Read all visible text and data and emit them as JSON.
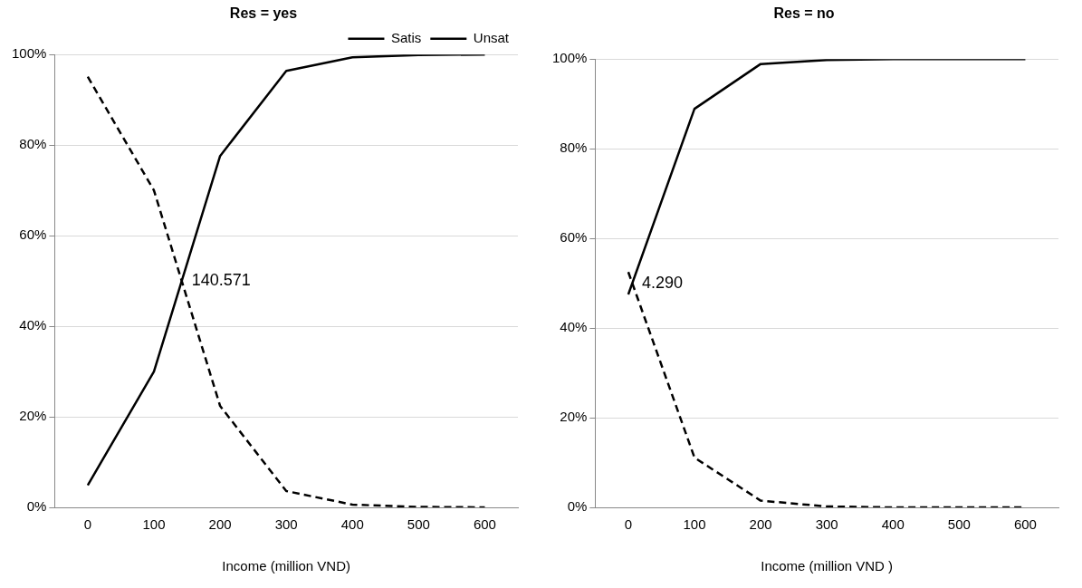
{
  "chart_data": [
    {
      "type": "line",
      "title": "Res = yes",
      "xlabel": "Income (million VND)",
      "x": [
        0,
        100,
        200,
        300,
        400,
        500,
        600
      ],
      "xlim": [
        -50,
        650
      ],
      "xticks": [
        0,
        100,
        200,
        300,
        400,
        500,
        600
      ],
      "ylim": [
        0,
        100
      ],
      "yticks": [
        {
          "value": 0,
          "label": "0%"
        },
        {
          "value": 20,
          "label": "20%"
        },
        {
          "value": 40,
          "label": "40%"
        },
        {
          "value": 60,
          "label": "60%"
        },
        {
          "value": 80,
          "label": "80%"
        },
        {
          "value": 100,
          "label": "100%"
        }
      ],
      "grid": "y",
      "legend": "top right",
      "marker": "none",
      "series": [
        {
          "name": "Satis",
          "color": "#000000",
          "line_style": "solid",
          "values": [
            4.9,
            30,
            77.6,
            96.4,
            99.4,
            99.9,
            100
          ]
        },
        {
          "name": "Unsat",
          "color": "#000000",
          "line_style": "dashed",
          "values": [
            95.1,
            70,
            22.4,
            3.6,
            0.6,
            0.1,
            0
          ]
        }
      ],
      "annotations": [
        {
          "text": "140.571",
          "x": 140.571,
          "y": 50
        }
      ]
    },
    {
      "type": "line",
      "title": "Res = no",
      "xlabel": "Income (million VND )",
      "x": [
        0,
        100,
        200,
        300,
        400,
        500,
        600
      ],
      "xlim": [
        -50,
        650
      ],
      "xticks": [
        0,
        100,
        200,
        300,
        400,
        500,
        600
      ],
      "ylim": [
        0,
        100
      ],
      "yticks": [
        {
          "value": 0,
          "label": "0%"
        },
        {
          "value": 20,
          "label": "20%"
        },
        {
          "value": 40,
          "label": "40%"
        },
        {
          "value": 60,
          "label": "60%"
        },
        {
          "value": 80,
          "label": "80%"
        },
        {
          "value": 100,
          "label": "100%"
        }
      ],
      "grid": "y",
      "marker": "none",
      "series": [
        {
          "color": "#000000",
          "line_style": "solid",
          "values": [
            47.5,
            88.9,
            98.9,
            99.8,
            100,
            100,
            100
          ]
        },
        {
          "color": "#000000",
          "line_style": "dashed",
          "values": [
            52.5,
            11.1,
            1.5,
            0.2,
            0,
            0,
            0
          ]
        }
      ],
      "annotations": [
        {
          "text": "4.290",
          "x": 4.29,
          "y": 50
        }
      ]
    }
  ]
}
